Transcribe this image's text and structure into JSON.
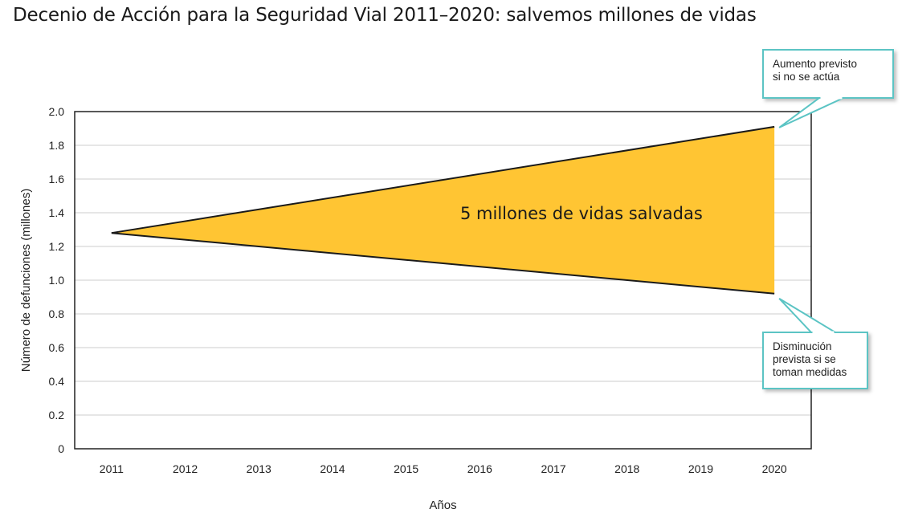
{
  "chart_data": {
    "type": "area",
    "title": "Decenio de Acción para la Seguridad Vial 2011–2020: salvemos millones de vidas",
    "xlabel": "Años",
    "ylabel": "Número de defunciones (millones)",
    "x": [
      2011,
      2020
    ],
    "xticks": [
      "2011",
      "2012",
      "2013",
      "2014",
      "2015",
      "2016",
      "2017",
      "2018",
      "2019",
      "2020"
    ],
    "yticks": [
      "0",
      "0.2",
      "0.4",
      "0.6",
      "0.8",
      "1.0",
      "1.2",
      "1.4",
      "1.6",
      "1.8",
      "2.0"
    ],
    "xlim": [
      2010.5,
      2020.5
    ],
    "ylim": [
      0,
      2.0
    ],
    "grid": true,
    "series": [
      {
        "values": [
          1.28,
          1.91
        ]
      },
      {
        "values": [
          1.28,
          0.92
        ]
      }
    ],
    "area_label": "5 millones de vidas salvadas",
    "annotations": [
      {
        "lines": [
          "Aumento previsto",
          "si no se actúa"
        ],
        "x": 2020,
        "y": 1.91
      },
      {
        "lines": [
          "Disminución",
          "prevista si se",
          "toman medidas"
        ],
        "x": 2020,
        "y": 0.92
      }
    ],
    "colors": {
      "fill": "#FFC533",
      "line": "#1a1a1a",
      "callout_border": "#5BC4C4",
      "grid": "#cccccc"
    }
  }
}
